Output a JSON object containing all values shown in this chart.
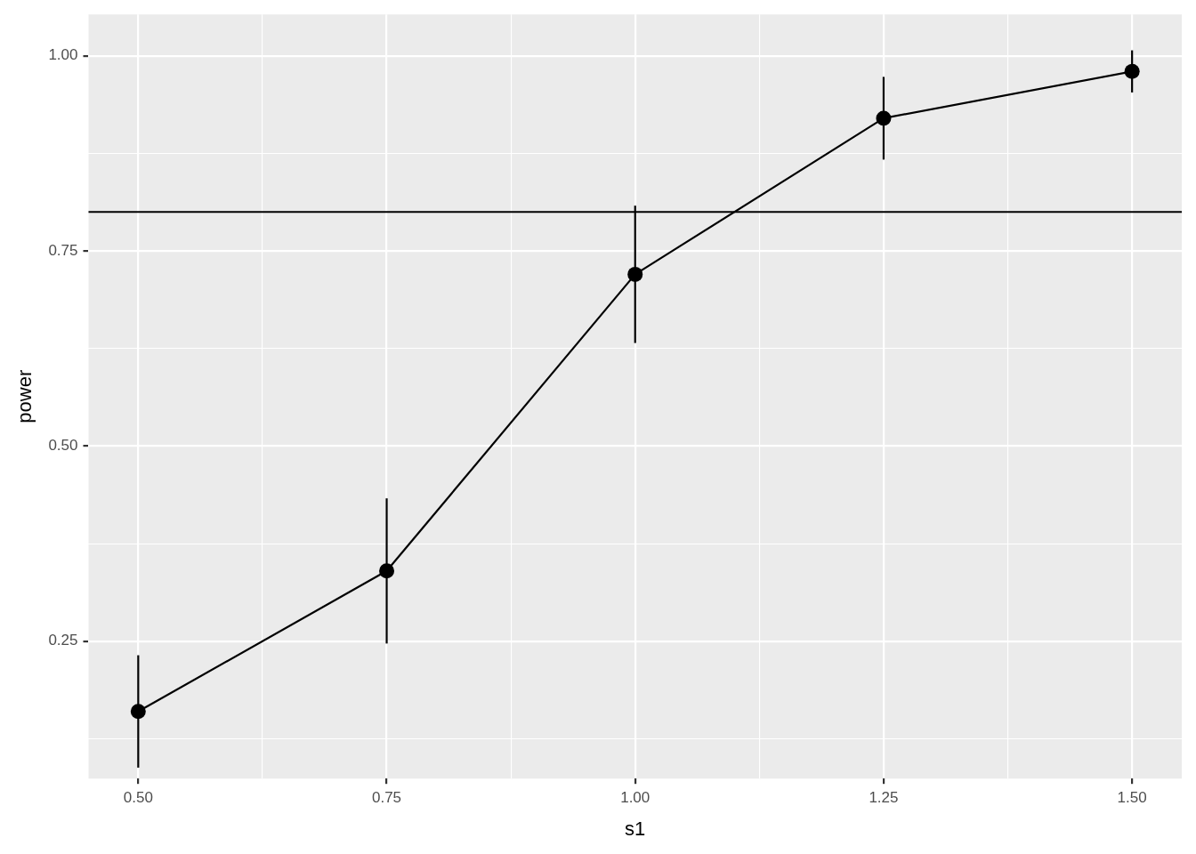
{
  "chart_data": {
    "type": "line",
    "xlabel": "s1",
    "ylabel": "power",
    "x": [
      0.5,
      0.75,
      1.0,
      1.25,
      1.5
    ],
    "series": [
      {
        "color": "#000000",
        "values": [
          0.16,
          0.34,
          0.72,
          0.92,
          0.98
        ],
        "errors": [
          0.072,
          0.093,
          0.088,
          0.053,
          0.027
        ]
      }
    ],
    "xlim": [
      0.45,
      1.55
    ],
    "xticks": [
      {
        "value": 0.5,
        "label": "0.50"
      },
      {
        "value": 0.625,
        "label": null
      },
      {
        "value": 0.75,
        "label": "0.75"
      },
      {
        "value": 0.875,
        "label": null
      },
      {
        "value": 1.0,
        "label": "1.00"
      },
      {
        "value": 1.125,
        "label": null
      },
      {
        "value": 1.25,
        "label": "1.25"
      },
      {
        "value": 1.375,
        "label": null
      },
      {
        "value": 1.5,
        "label": "1.50"
      }
    ],
    "ylim": [
      0.074,
      1.053
    ],
    "yticks": [
      {
        "value": 0.125,
        "label": null
      },
      {
        "value": 0.25,
        "label": "0.25"
      },
      {
        "value": 0.375,
        "label": null
      },
      {
        "value": 0.5,
        "label": "0.50"
      },
      {
        "value": 0.625,
        "label": null
      },
      {
        "value": 0.75,
        "label": "0.75"
      },
      {
        "value": 0.875,
        "label": null
      },
      {
        "value": 1.0,
        "label": "1.00"
      }
    ],
    "ref_lines": [
      {
        "axis": "y",
        "value": 0.8,
        "color": "#000000"
      }
    ],
    "grid": true,
    "marker": "circle",
    "line_style": "solid"
  }
}
